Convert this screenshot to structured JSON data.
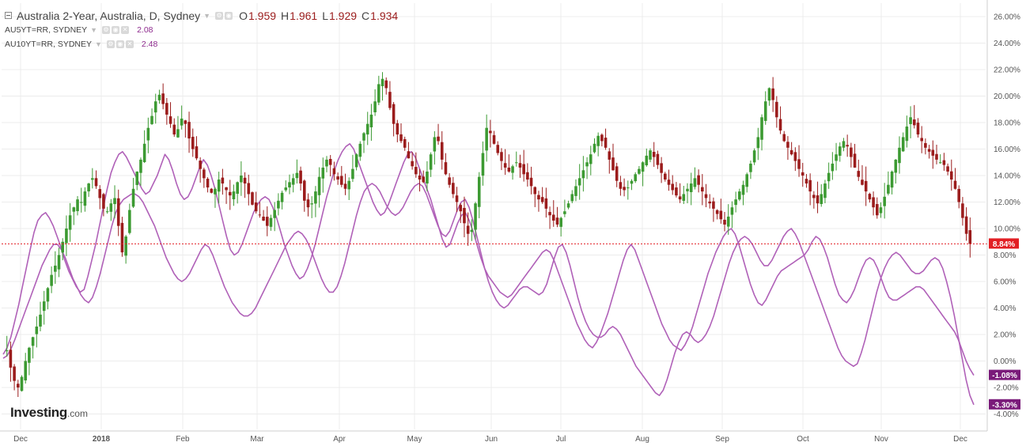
{
  "legend": {
    "main": {
      "title": "Australia 2-Year, Australia, D, Sydney",
      "open_label": "O",
      "open_value": "1.959",
      "high_label": "H",
      "high_value": "1.961",
      "low_label": "L",
      "low_value": "1.929",
      "close_label": "C",
      "close_value": "1.934"
    },
    "series": [
      {
        "name": "AU5YT=RR, SYDNEY",
        "value": "2.08"
      },
      {
        "name": "AU10YT=RR, SYDNEY",
        "value": "2.48"
      }
    ]
  },
  "logo": {
    "main": "Investing",
    "suffix": ".com"
  },
  "colors": {
    "up": "#3c9a32",
    "down": "#9b1c1c",
    "series": "#b061b8",
    "price_flag": "#e21f24",
    "series_flag": "#7a1b7a",
    "grid": "#ececec"
  },
  "chart_data": {
    "type": "candlestick",
    "y_axis": {
      "min": -4,
      "max": 27,
      "unit": "%",
      "tick_labels": [
        "26.00%",
        "24.00%",
        "22.00%",
        "20.00%",
        "18.00%",
        "16.00%",
        "14.00%",
        "12.00%",
        "10.00%",
        "8.00%",
        "6.00%",
        "4.00%",
        "2.00%",
        "0.00%",
        "-2.00%",
        "-4.00%"
      ],
      "tick_values": [
        26,
        24,
        22,
        20,
        18,
        16,
        14,
        12,
        10,
        8,
        6,
        4,
        2,
        0,
        -2,
        -4
      ]
    },
    "x_axis": {
      "tick_labels": [
        "Dec",
        "2018",
        "Feb",
        "Mar",
        "Apr",
        "May",
        "Jun",
        "Jul",
        "Aug",
        "Sep",
        "Oct",
        "Nov",
        "Dec"
      ]
    },
    "last_price_label": "8.84%",
    "last_price": 8.84,
    "series_end_labels": [
      "-1.08%",
      "-3.30%"
    ],
    "series_end_values": [
      -1.08,
      -3.3
    ],
    "candles_close_path": [
      0.5,
      0.8,
      -0.5,
      -1.5,
      -2.0,
      -1.2,
      0.0,
      1.0,
      1.8,
      2.6,
      3.5,
      4.5,
      5.5,
      6.5,
      7.2,
      8.0,
      9.0,
      10.0,
      11.0,
      11.6,
      12.2,
      12.0,
      12.8,
      13.4,
      13.8,
      13.2,
      12.3,
      11.5,
      11.3,
      11.9,
      12.3,
      10.2,
      8.2,
      9.4,
      11.4,
      13.0,
      14.3,
      15.2,
      16.4,
      17.6,
      18.5,
      19.6,
      20.1,
      19.4,
      18.6,
      17.9,
      17.1,
      17.5,
      18.3,
      17.9,
      16.8,
      16.0,
      15.3,
      14.5,
      13.8,
      13.1,
      12.7,
      13.0,
      13.7,
      13.4,
      12.9,
      12.5,
      12.8,
      13.5,
      14.0,
      13.4,
      12.6,
      11.8,
      11.3,
      11.0,
      10.6,
      10.2,
      10.8,
      11.4,
      12.1,
      12.7,
      13.1,
      13.5,
      13.8,
      14.2,
      13.4,
      12.1,
      11.6,
      11.9,
      12.8,
      13.9,
      14.6,
      15.2,
      14.8,
      14.1,
      13.7,
      13.3,
      13.0,
      13.6,
      14.5,
      15.6,
      16.4,
      17.2,
      17.9,
      18.6,
      19.6,
      20.9,
      21.3,
      20.6,
      19.1,
      17.9,
      17.1,
      16.6,
      16.1,
      15.3,
      14.7,
      14.1,
      13.7,
      13.5,
      14.3,
      15.6,
      16.9,
      16.6,
      15.2,
      14.1,
      13.3,
      12.6,
      12.0,
      11.3,
      10.4,
      9.6,
      9.9,
      11.9,
      13.9,
      15.7,
      17.6,
      17.2,
      16.4,
      15.7,
      15.1,
      14.6,
      14.3,
      14.7,
      15.0,
      14.6,
      14.1,
      13.7,
      13.2,
      12.6,
      12.2,
      12.0,
      11.5,
      11.0,
      10.6,
      10.3,
      10.8,
      11.3,
      11.9,
      12.6,
      13.2,
      13.8,
      14.4,
      15.0,
      15.6,
      16.4,
      17.0,
      16.6,
      16.1,
      15.2,
      14.4,
      13.6,
      13.0,
      12.9,
      13.1,
      13.6,
      14.1,
      14.5,
      15.0,
      15.5,
      15.9,
      15.4,
      14.8,
      14.2,
      13.7,
      13.3,
      12.9,
      12.5,
      12.2,
      12.6,
      13.0,
      13.4,
      13.8,
      13.3,
      12.8,
      12.3,
      11.9,
      11.5,
      11.1,
      10.7,
      10.3,
      10.9,
      11.6,
      12.2,
      12.8,
      13.3,
      14.1,
      14.9,
      15.9,
      16.9,
      18.4,
      19.6,
      20.6,
      19.7,
      18.4,
      17.4,
      16.6,
      16.1,
      15.6,
      15.1,
      14.5,
      14.0,
      13.4,
      12.8,
      12.3,
      11.9,
      12.6,
      13.4,
      14.2,
      14.9,
      15.6,
      16.2,
      16.6,
      16.2,
      15.4,
      14.6,
      13.9,
      13.3,
      12.8,
      12.2,
      11.6,
      11.0,
      11.6,
      12.4,
      13.3,
      14.3,
      15.2,
      16.1,
      16.9,
      17.7,
      18.4,
      17.8,
      17.1,
      16.6,
      16.1,
      15.8,
      15.5,
      15.2,
      15.0,
      14.8,
      14.3,
      13.7,
      13.0,
      12.0,
      10.8,
      9.6,
      8.84
    ],
    "series": [
      {
        "name": "AU5YT=RR, SYDNEY",
        "end_value": -1.08,
        "values": [
          0.5,
          1.0,
          1.8,
          3.0,
          4.2,
          5.6,
          7.0,
          8.4,
          9.7,
          10.6,
          11.0,
          11.2,
          10.8,
          10.2,
          9.4,
          8.6,
          7.6,
          6.8,
          6.2,
          5.6,
          5.2,
          5.4,
          6.4,
          7.6,
          8.8,
          10.2,
          11.6,
          13.0,
          14.2,
          15.0,
          15.6,
          15.8,
          15.4,
          14.8,
          14.2,
          13.6,
          13.0,
          12.6,
          12.8,
          13.4,
          14.0,
          14.8,
          15.6,
          15.2,
          14.4,
          13.4,
          12.6,
          12.2,
          12.4,
          13.0,
          13.8,
          14.6,
          15.2,
          14.8,
          14.0,
          13.0,
          11.8,
          10.6,
          9.4,
          8.4,
          8.0,
          8.2,
          8.8,
          9.6,
          10.4,
          11.2,
          11.8,
          12.2,
          12.4,
          12.2,
          11.6,
          10.8,
          9.8,
          8.8,
          8.0,
          7.2,
          6.6,
          6.2,
          6.4,
          7.0,
          7.8,
          8.8,
          10.0,
          11.2,
          12.4,
          13.4,
          14.4,
          15.2,
          15.8,
          16.2,
          16.4,
          16.0,
          15.2,
          14.4,
          13.6,
          12.8,
          12.0,
          11.4,
          11.0,
          11.2,
          11.8,
          12.6,
          13.4,
          14.2,
          15.0,
          15.6,
          15.8,
          15.4,
          14.6,
          13.8,
          13.0,
          12.2,
          11.2,
          10.2,
          9.2,
          8.6,
          8.8,
          9.6,
          10.4,
          11.0,
          11.2,
          10.6,
          9.8,
          8.8,
          7.8,
          7.0,
          6.4,
          6.0,
          5.6,
          5.2,
          5.0,
          4.8,
          5.0,
          5.4,
          5.8,
          6.2,
          6.6,
          7.0,
          7.4,
          7.8,
          8.2,
          8.4,
          8.2,
          7.6,
          6.8,
          6.0,
          5.2,
          4.4,
          3.6,
          2.8,
          2.2,
          1.6,
          1.2,
          1.0,
          1.4,
          2.0,
          2.8,
          3.6,
          4.6,
          5.6,
          6.6,
          7.6,
          8.4,
          8.8,
          8.4,
          7.6,
          6.8,
          6.0,
          5.2,
          4.4,
          3.6,
          2.8,
          2.2,
          1.6,
          1.2,
          1.0,
          0.8,
          1.2,
          1.8,
          2.6,
          3.6,
          4.6,
          5.6,
          6.6,
          7.4,
          8.2,
          8.8,
          9.4,
          9.8,
          10.0,
          9.6,
          8.8,
          7.8,
          6.8,
          5.8,
          5.0,
          4.4,
          4.2,
          4.6,
          5.2,
          5.8,
          6.4,
          6.8,
          7.0,
          7.2,
          7.4,
          7.6,
          7.8,
          8.0,
          8.4,
          9.0,
          9.4,
          9.2,
          8.6,
          7.8,
          6.8,
          5.8,
          5.0,
          4.6,
          4.4,
          4.8,
          5.4,
          6.2,
          7.0,
          7.6,
          7.8,
          7.6,
          7.0,
          6.2,
          5.4,
          4.8,
          4.6,
          4.6,
          4.8,
          5.0,
          5.2,
          5.4,
          5.6,
          5.6,
          5.4,
          5.0,
          4.6,
          4.2,
          3.8,
          3.4,
          3.0,
          2.6,
          2.2,
          1.6,
          0.8,
          0.0,
          -0.6,
          -1.08
        ]
      },
      {
        "name": "AU10YT=RR, SYDNEY",
        "end_value": -3.3,
        "values": [
          0.2,
          0.4,
          0.9,
          1.6,
          2.4,
          3.2,
          4.0,
          4.8,
          5.6,
          6.4,
          7.2,
          7.8,
          8.4,
          8.8,
          8.8,
          8.4,
          7.8,
          7.0,
          6.2,
          5.6,
          5.0,
          4.6,
          4.4,
          4.8,
          5.6,
          6.6,
          7.8,
          9.0,
          10.2,
          11.2,
          11.8,
          12.2,
          12.4,
          12.6,
          12.6,
          12.4,
          12.0,
          11.4,
          10.8,
          10.2,
          9.4,
          8.6,
          7.8,
          7.2,
          6.6,
          6.2,
          6.0,
          6.2,
          6.6,
          7.2,
          7.8,
          8.4,
          8.8,
          8.6,
          8.0,
          7.2,
          6.4,
          5.6,
          5.0,
          4.4,
          4.0,
          3.6,
          3.4,
          3.4,
          3.6,
          4.0,
          4.6,
          5.2,
          5.8,
          6.4,
          7.0,
          7.6,
          8.2,
          8.8,
          9.2,
          9.6,
          9.8,
          9.6,
          9.2,
          8.6,
          7.8,
          7.0,
          6.2,
          5.6,
          5.2,
          5.2,
          5.6,
          6.4,
          7.4,
          8.6,
          9.8,
          11.0,
          12.0,
          12.8,
          13.2,
          13.4,
          13.2,
          12.8,
          12.2,
          11.6,
          11.2,
          11.0,
          11.2,
          11.6,
          12.2,
          12.8,
          13.2,
          13.4,
          13.2,
          12.6,
          11.8,
          11.0,
          10.2,
          9.6,
          9.4,
          9.8,
          10.6,
          11.4,
          12.0,
          12.2,
          11.6,
          10.6,
          9.4,
          8.2,
          7.0,
          6.0,
          5.2,
          4.6,
          4.2,
          4.0,
          4.2,
          4.6,
          5.0,
          5.4,
          5.6,
          5.6,
          5.4,
          5.2,
          5.0,
          5.2,
          5.8,
          6.8,
          7.8,
          8.6,
          8.8,
          8.2,
          7.2,
          6.0,
          4.8,
          3.8,
          3.0,
          2.4,
          2.0,
          1.8,
          1.8,
          2.0,
          2.4,
          2.6,
          2.4,
          2.0,
          1.4,
          0.8,
          0.2,
          -0.4,
          -0.8,
          -1.2,
          -1.6,
          -2.0,
          -2.4,
          -2.6,
          -2.2,
          -1.4,
          -0.4,
          0.6,
          1.4,
          2.0,
          2.2,
          2.0,
          1.6,
          1.4,
          1.6,
          2.0,
          2.6,
          3.4,
          4.4,
          5.4,
          6.4,
          7.4,
          8.2,
          8.8,
          9.2,
          9.4,
          9.2,
          8.8,
          8.2,
          7.6,
          7.2,
          7.2,
          7.6,
          8.2,
          8.8,
          9.4,
          9.8,
          10.0,
          9.6,
          9.0,
          8.2,
          7.4,
          6.6,
          5.8,
          5.0,
          4.2,
          3.4,
          2.6,
          1.8,
          1.0,
          0.4,
          0.0,
          -0.2,
          -0.4,
          -0.2,
          0.6,
          1.6,
          2.8,
          4.0,
          5.2,
          6.2,
          7.0,
          7.6,
          8.0,
          8.2,
          8.0,
          7.6,
          7.2,
          6.8,
          6.6,
          6.6,
          6.8,
          7.2,
          7.6,
          7.8,
          7.6,
          7.0,
          6.0,
          4.8,
          3.4,
          1.8,
          0.2,
          -1.4,
          -2.6,
          -3.3
        ]
      }
    ]
  }
}
